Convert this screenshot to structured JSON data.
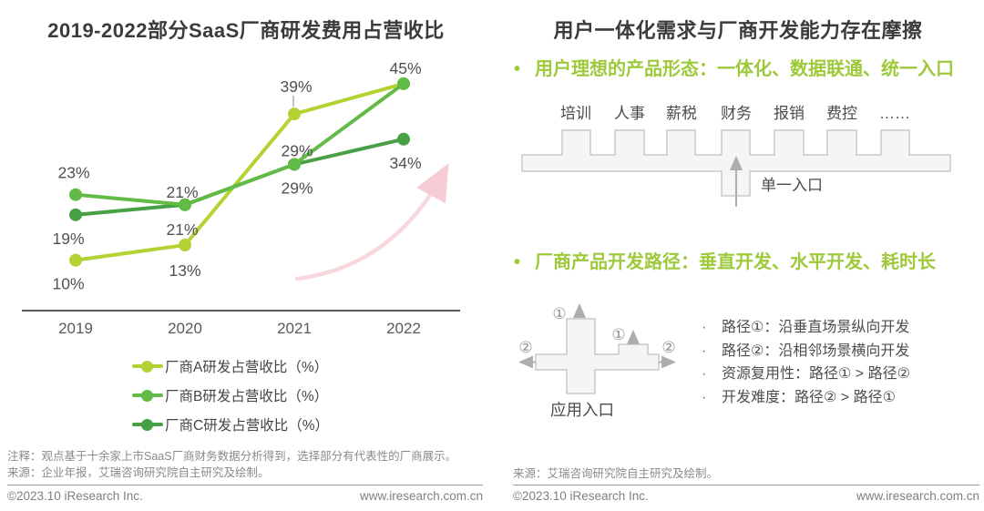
{
  "left_panel": {
    "title": "2019-2022部分SaaS厂商研发费用占营收比",
    "chart_data": {
      "type": "line",
      "title": "2019-2022部分SaaS厂商研发费用占营收比",
      "categories": [
        "2019",
        "2020",
        "2021",
        "2022"
      ],
      "series": [
        {
          "name": "厂商A研发占营收比（%）",
          "color": "#b3d335",
          "values": [
            10,
            13,
            39,
            45
          ]
        },
        {
          "name": "厂商B研发占营收比（%）",
          "color": "#62bb46",
          "values": [
            23,
            21,
            29,
            45
          ]
        },
        {
          "name": "厂商C研发占营收比（%）",
          "color": "#47a043",
          "values": [
            19,
            21,
            29,
            34
          ]
        }
      ],
      "value_suffix": "%",
      "ylim": [
        0,
        50
      ],
      "grid": false,
      "legend_position": "bottom",
      "axis_color": "#58585a",
      "annotation": "上升趋势箭头",
      "annotation_color": "#f6cdd5"
    },
    "note": "注释：观点基于十余家上市SaaS厂商财务数据分析得到，选择部分有代表性的厂商展示。",
    "source": "来源：企业年报，艾瑞咨询研究院自主研究及绘制。",
    "copyright": "©2023.10 iResearch Inc.",
    "website": "www.iresearch.com.cn"
  },
  "right_panel": {
    "title": "用户一体化需求与厂商开发能力存在摩擦",
    "bullet1": "用户理想的产品形态：一体化、数据联通、统一入口",
    "bullet2": "厂商产品开发路径：垂直开发、水平开发、耗时长",
    "bullet_marker": "•",
    "comb_diagram": {
      "modules": [
        "培训",
        "人事",
        "薪税",
        "财务",
        "报销",
        "费控",
        "……"
      ],
      "entry_label": "单一入口"
    },
    "path_diagram": {
      "app_entry_label": "应用入口",
      "path1_marker": "①",
      "path2_marker": "②"
    },
    "path_notes": [
      "路径①：沿垂直场景纵向开发",
      "路径②：沿相邻场景横向开发",
      "资源复用性：路径① > 路径②",
      "开发难度：路径② > 路径①"
    ],
    "source": "来源：艾瑞咨询研究院自主研究及绘制。",
    "copyright": "©2023.10 iResearch Inc.",
    "website": "www.iresearch.com.cn"
  },
  "accent_green": "#9dc93a"
}
